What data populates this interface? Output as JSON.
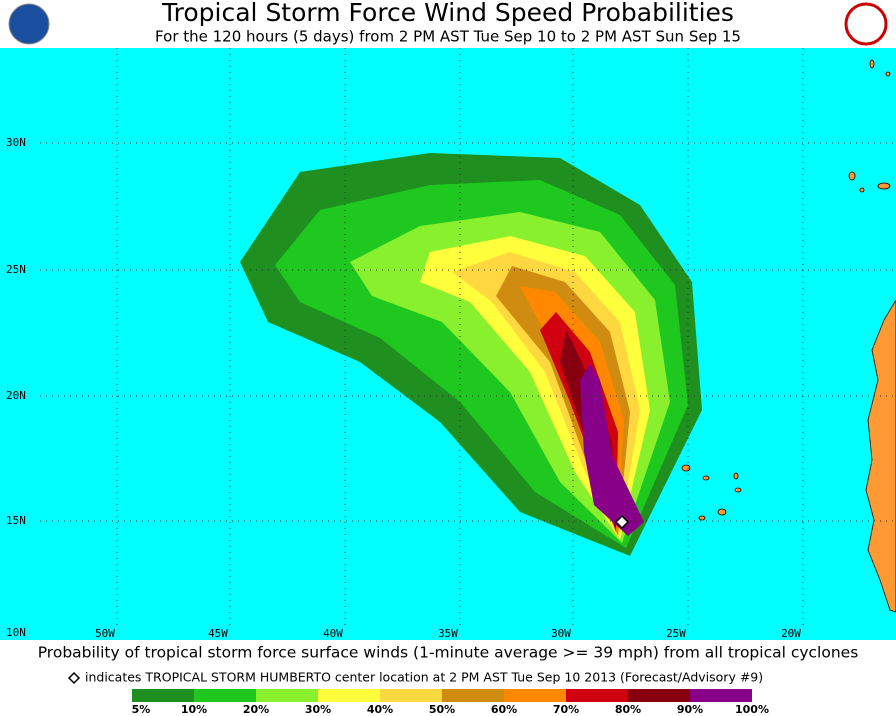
{
  "header": {
    "title": "Tropical Storm Force Wind Speed Probabilities",
    "subtitle": "For the 120 hours (5 days) from 2 PM AST Tue Sep 10 to 2 PM AST Sun Sep 15"
  },
  "map": {
    "lat_labels": [
      "30N",
      "25N",
      "20N",
      "15N",
      "10N"
    ],
    "lon_labels": [
      "50W",
      "45W",
      "40W",
      "35W",
      "30W",
      "25W",
      "20W"
    ]
  },
  "footer": {
    "caption": "Probability of tropical storm force surface winds (1-minute average >= 39 mph) from all tropical cyclones",
    "note": "indicates TROPICAL STORM HUMBERTO center location at 2 PM AST Tue Sep 10 2013 (Forecast/Advisory #9)"
  },
  "legend": {
    "labels": [
      "5%",
      "10%",
      "20%",
      "30%",
      "40%",
      "50%",
      "60%",
      "70%",
      "80%",
      "90%",
      "100%"
    ],
    "colors": [
      "#1f8f1f",
      "#1ec81e",
      "#88f02c",
      "#ffff3c",
      "#ffd840",
      "#d08c10",
      "#ff8800",
      "#d00010",
      "#880010",
      "#880088"
    ]
  }
}
